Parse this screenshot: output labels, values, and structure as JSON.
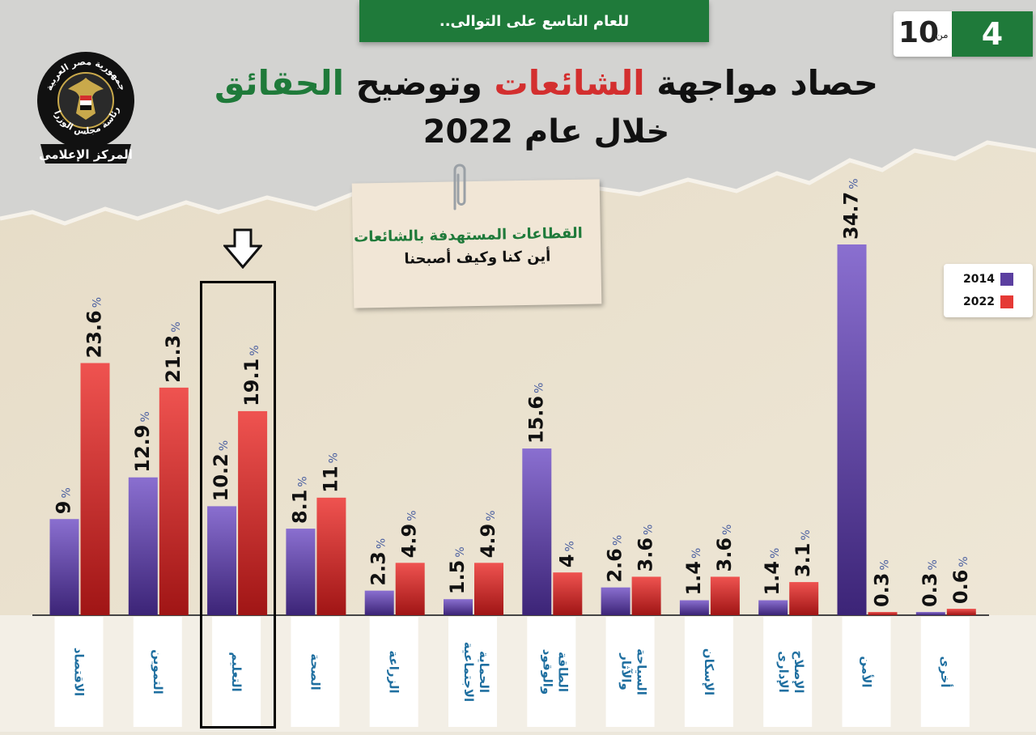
{
  "header": {
    "badge_text": "للعام التاسع على التوالى..",
    "page_number": "4",
    "page_of": "من",
    "page_total": "10",
    "title_part1": "حصاد مواجهة ",
    "title_part2": "الشائعات",
    "title_part3": " وتوضيح ",
    "title_part4": "الحقائق",
    "title_line2": "خلال عام 2022"
  },
  "logo": {
    "icon": "eagle-emblem-icon",
    "text_top": "جمهورية مصر العربية",
    "text_middle": "رئاسة مجلس الوزراء",
    "text_bottom": "المركز الإعلامى"
  },
  "note": {
    "line1": "القطاعات المستهدفة  بالشائعات",
    "line2": "أين كنا وكيف أصبحنا"
  },
  "legend": {
    "items": [
      {
        "label": "2014",
        "color": "#5b3fa0"
      },
      {
        "label": "2022",
        "color": "#e53935"
      }
    ]
  },
  "chart_data": {
    "type": "bar",
    "title": "حصاد مواجهة الشائعات وتوضيح الحقائق خلال عام 2022",
    "subtitle": "القطاعات المستهدفة بالشائعات أين كنا وكيف أصبحنا",
    "categories": [
      "الاقتصاد",
      "التموين",
      "التعليم",
      "الصحة",
      "الزراعة",
      "الحماية الاجتماعية",
      "الطاقة والوقود",
      "السياحة والآثار",
      "الإسكان",
      "الإصلاح الإدارى",
      "الأمن",
      "أخرى"
    ],
    "series": [
      {
        "name": "2014",
        "color": "#5b3fa0",
        "values": [
          9,
          12.9,
          10.2,
          8.1,
          2.3,
          1.5,
          15.6,
          2.6,
          1.4,
          1.4,
          34.7,
          0.3
        ],
        "labels": [
          "9",
          "12.9",
          "10.2",
          "8.1",
          "2.3",
          "1.5",
          "15.6",
          "2.6",
          "1.4",
          "1.4",
          "34.7",
          "0.3"
        ]
      },
      {
        "name": "2022",
        "color": "#e53935",
        "values": [
          23.6,
          21.3,
          19.1,
          11,
          4.9,
          4.9,
          4,
          3.6,
          3.6,
          3.1,
          0.3,
          0.6
        ],
        "labels": [
          "23.6",
          "21.3",
          "19.1",
          "11",
          "4.9",
          "4.9",
          "4",
          "3.6",
          "3.6",
          "3.1",
          "0.3",
          "0.6"
        ]
      }
    ],
    "unit": "%",
    "highlight_category": "التعليم",
    "xlabel": "",
    "ylabel": "",
    "ylim": [
      0,
      35
    ],
    "grid": false,
    "legend_position": "top-right"
  }
}
